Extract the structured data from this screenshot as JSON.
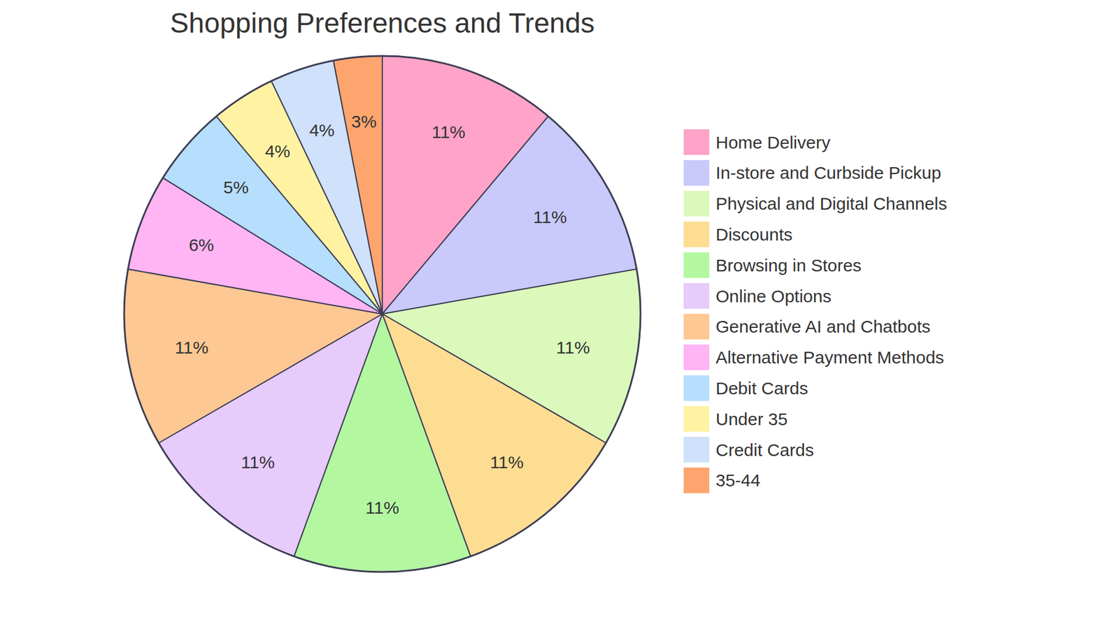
{
  "chart_data": {
    "type": "pie",
    "title": "Shopping Preferences and Trends",
    "categories": [
      "Home Delivery",
      "In-store and Curbside Pickup",
      "Physical and Digital Channels",
      "Discounts",
      "Browsing in Stores",
      "Online Options",
      "Generative AI and Chatbots",
      "Alternative Payment Methods",
      "Debit Cards",
      "Under 35",
      "Credit Cards",
      "35-44"
    ],
    "values": [
      11,
      11,
      11,
      11,
      11,
      11,
      11,
      6,
      5,
      4,
      4,
      3
    ],
    "value_labels": [
      "11%",
      "11%",
      "11%",
      "11%",
      "11%",
      "11%",
      "11%",
      "6%",
      "5%",
      "4%",
      "4%",
      "3%"
    ],
    "colors": [
      "#ffa3c8",
      "#c9c9fb",
      "#dbf9bb",
      "#fddd92",
      "#b3f7a1",
      "#e6cbfb",
      "#fdc893",
      "#ffb4f4",
      "#b6defd",
      "#fff3a3",
      "#cfe1fb",
      "#fea56f"
    ],
    "data_labels": true,
    "legend": "right"
  }
}
